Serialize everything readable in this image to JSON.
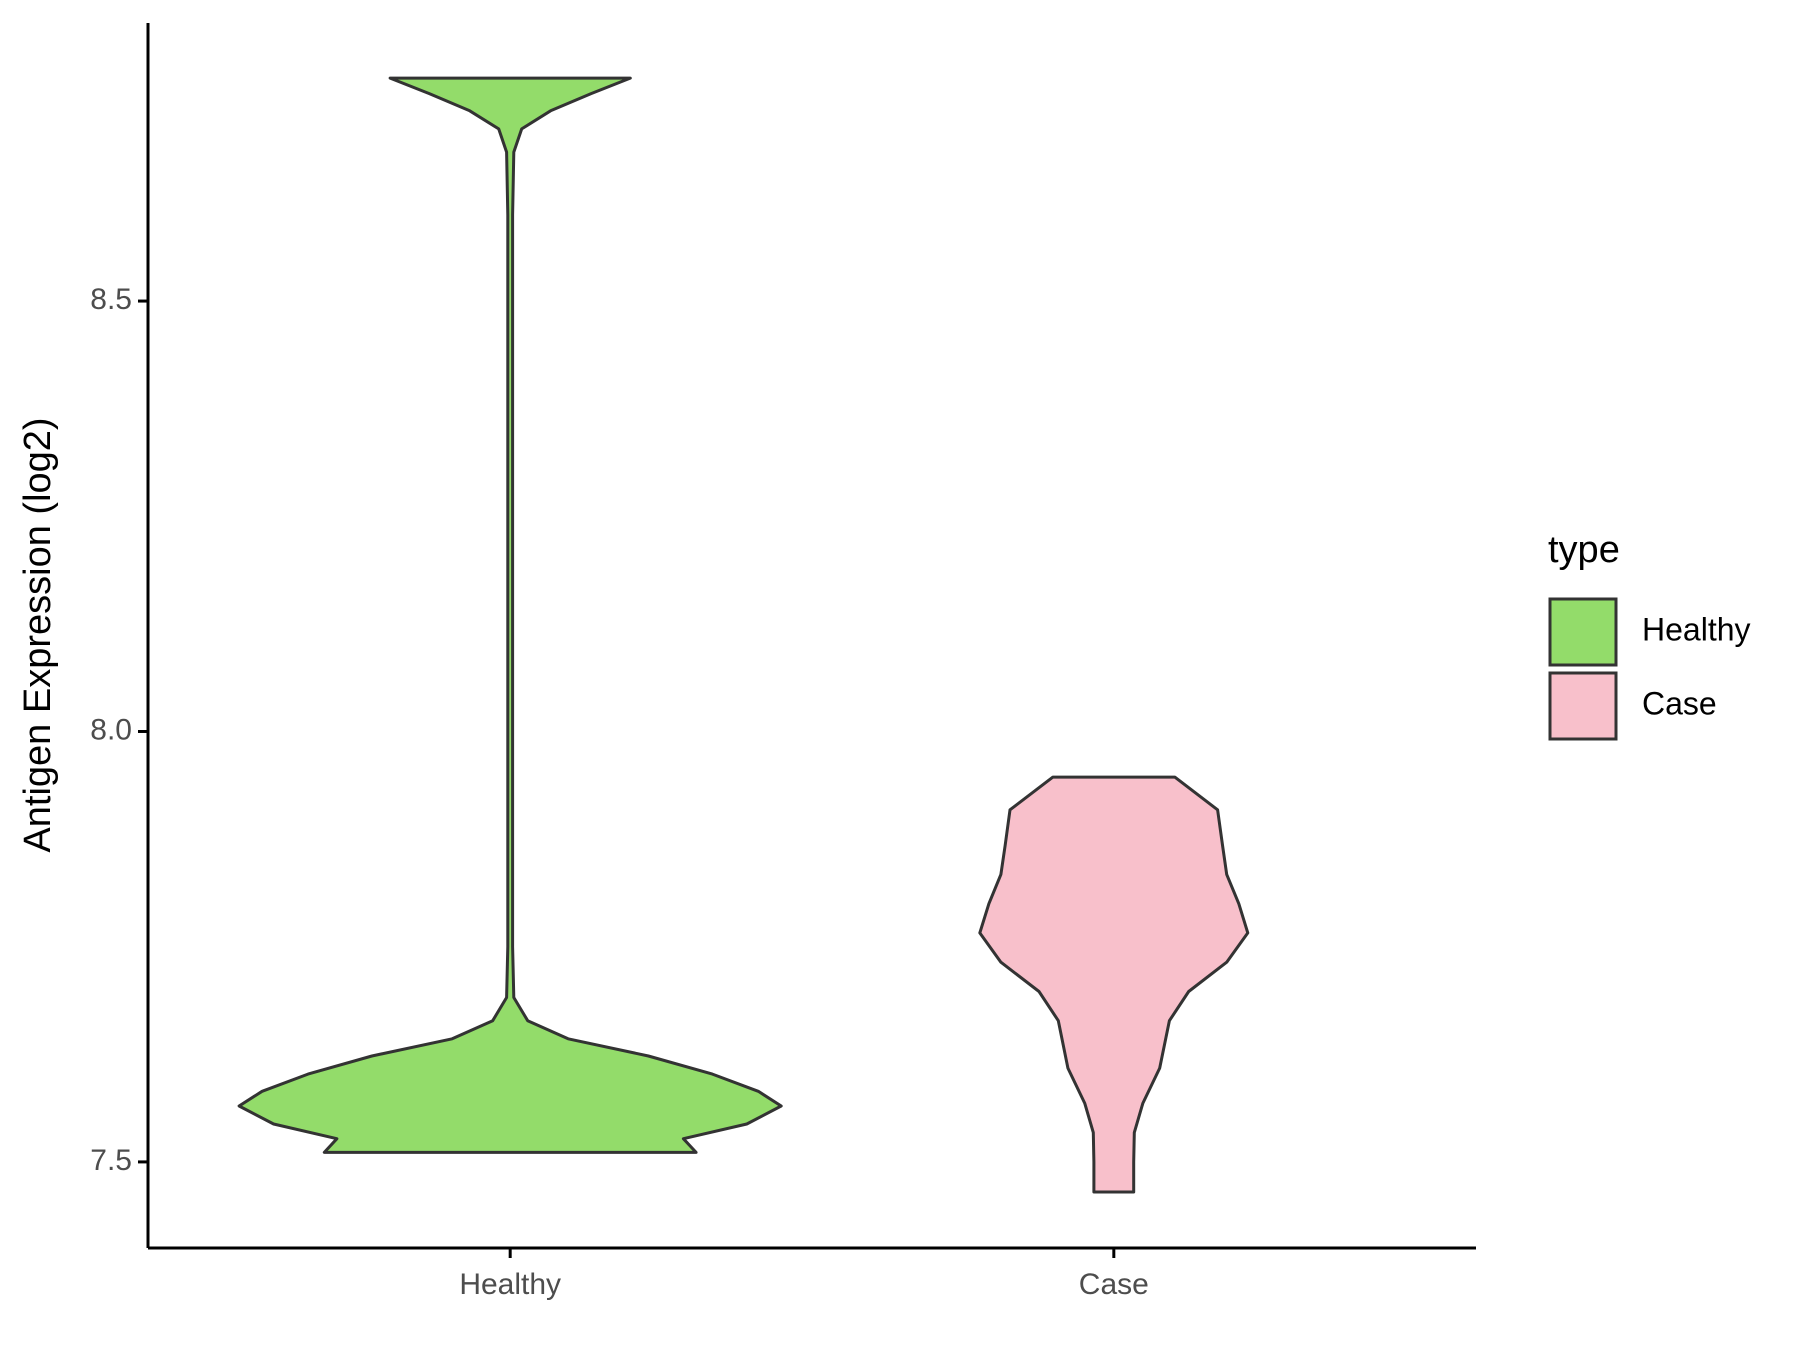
{
  "chart_data": {
    "type": "violin",
    "y_label": "Antigen Expression (log2)",
    "categories": [
      "Healthy",
      "Case"
    ],
    "legend_title": "type",
    "legend_position": "right",
    "ylim": [
      7.4,
      8.823
    ],
    "yticks": [
      {
        "value": 7.5,
        "label": "7.5"
      },
      {
        "value": 8.0,
        "label": "8.0"
      },
      {
        "value": 8.5,
        "label": "8.5"
      }
    ],
    "series": [
      {
        "name": "Healthy",
        "color": "#93dc6a",
        "y": [
          7.511,
          7.527,
          7.544,
          7.565,
          7.582,
          7.602,
          7.623,
          7.643,
          7.664,
          7.691,
          7.75,
          8.0,
          8.3,
          8.6,
          8.673,
          8.7,
          8.721,
          8.741,
          8.759
        ],
        "half_widths": [
          0.308,
          0.287,
          0.392,
          0.449,
          0.411,
          0.335,
          0.229,
          0.096,
          0.029,
          0.006,
          0.004,
          0.004,
          0.004,
          0.004,
          0.006,
          0.019,
          0.067,
          0.134,
          0.199
        ]
      },
      {
        "name": "Case",
        "color": "#f8c0cb",
        "y": [
          7.465,
          7.5,
          7.534,
          7.568,
          7.609,
          7.664,
          7.698,
          7.732,
          7.766,
          7.8,
          7.834,
          7.868,
          7.909,
          7.947
        ],
        "half_widths": [
          0.033,
          0.033,
          0.034,
          0.048,
          0.076,
          0.092,
          0.124,
          0.187,
          0.222,
          0.207,
          0.187,
          0.18,
          0.172,
          0.101
        ]
      }
    ]
  }
}
